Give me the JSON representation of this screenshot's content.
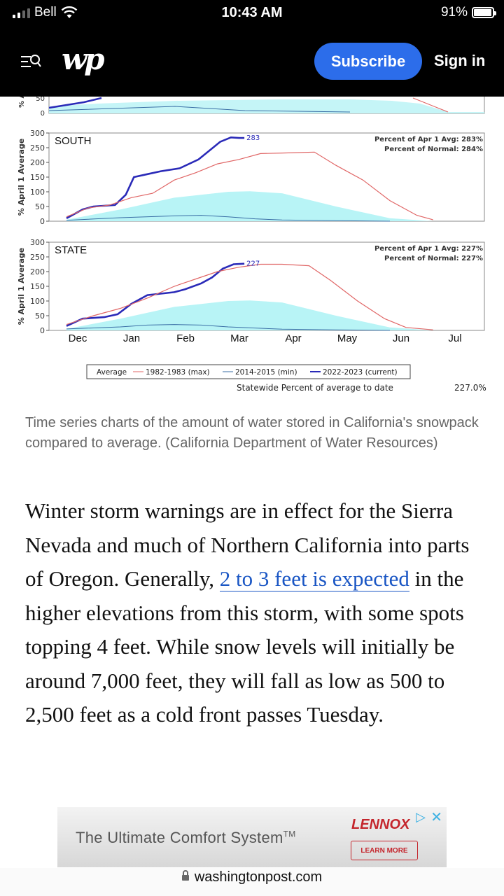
{
  "status_bar": {
    "carrier": "Bell",
    "time": "10:43 AM",
    "battery": "91%",
    "battery_level": 0.91
  },
  "header": {
    "subscribe_label": "Subscribe",
    "signin_label": "Sign in",
    "logo": "wp"
  },
  "chart_data": {
    "type": "line",
    "ylabel": "% April 1 Average",
    "ylim": [
      0,
      300
    ],
    "yticks": [
      0,
      50,
      100,
      150,
      200,
      250,
      300
    ],
    "xlabels": [
      "Dec",
      "Jan",
      "Feb",
      "Mar",
      "Apr",
      "May",
      "Jun",
      "Jul"
    ],
    "panels": [
      {
        "name": "SOUTH",
        "current_label": "283",
        "info_line1": "Percent of Apr 1 Avg: 283%",
        "info_line2": "Percent of Normal: 284%",
        "series": [
          {
            "name": "2022-2023 (current)",
            "x": [
              0,
              0.3,
              0.5,
              0.9,
              1.1,
              1.25,
              1.5,
              1.75,
              2.1,
              2.45,
              2.65,
              2.85,
              3.05,
              3.2,
              3.3
            ],
            "y": [
              10,
              40,
              50,
              55,
              90,
              150,
              160,
              170,
              180,
              210,
              240,
              270,
              285,
              283,
              283
            ]
          },
          {
            "name": "1982-1983 (max)",
            "x": [
              0,
              0.4,
              0.8,
              1.2,
              1.6,
              2.0,
              2.4,
              2.8,
              3.2,
              3.6,
              4.0,
              4.6,
              5.0,
              5.5,
              6.0,
              6.5,
              6.8
            ],
            "y": [
              15,
              45,
              55,
              80,
              95,
              140,
              165,
              195,
              210,
              230,
              232,
              235,
              190,
              140,
              70,
              20,
              5
            ]
          },
          {
            "name": "Average",
            "x": [
              0,
              1,
              2,
              3,
              3.4,
              4,
              5,
              6,
              6.8
            ],
            "y": [
              5,
              40,
              80,
              100,
              102,
              95,
              50,
              10,
              0
            ]
          },
          {
            "name": "2014-2015 (min)",
            "x": [
              0,
              1,
              2,
              2.5,
              3,
              3.5,
              4,
              5,
              6
            ],
            "y": [
              3,
              12,
              18,
              20,
              15,
              8,
              4,
              2,
              0
            ]
          }
        ]
      },
      {
        "name": "STATE",
        "current_label": "227",
        "info_line1": "Percent of Apr 1 Avg: 227%",
        "info_line2": "Percent of Normal: 227%",
        "series": [
          {
            "name": "2022-2023 (current)",
            "x": [
              0,
              0.3,
              0.7,
              0.95,
              1.2,
              1.5,
              1.75,
              2.0,
              2.2,
              2.5,
              2.7,
              2.9,
              3.1,
              3.3
            ],
            "y": [
              15,
              40,
              45,
              55,
              90,
              120,
              125,
              130,
              140,
              160,
              180,
              210,
              225,
              227
            ]
          },
          {
            "name": "1982-1983 (max)",
            "x": [
              0,
              0.5,
              1.0,
              1.5,
              2.0,
              2.4,
              2.8,
              3.2,
              3.6,
              4.0,
              4.5,
              4.9,
              5.4,
              5.9,
              6.3,
              6.8
            ],
            "y": [
              20,
              50,
              75,
              110,
              150,
              175,
              200,
              215,
              225,
              225,
              220,
              170,
              100,
              40,
              10,
              2
            ]
          },
          {
            "name": "Average",
            "x": [
              0,
              1,
              2,
              3,
              3.4,
              4,
              5,
              6,
              6.8
            ],
            "y": [
              5,
              40,
              80,
              100,
              102,
              95,
              50,
              10,
              0
            ]
          },
          {
            "name": "2014-2015 (min)",
            "x": [
              0,
              1,
              1.5,
              2,
              2.5,
              3,
              3.5,
              4,
              5,
              6
            ],
            "y": [
              5,
              12,
              18,
              20,
              18,
              12,
              8,
              4,
              2,
              0
            ]
          }
        ]
      }
    ],
    "legend": [
      "Average",
      "1982-1983 (max)",
      "2014-2015 (min)",
      "2022-2023 (current)"
    ],
    "footer_label": "Statewide Percent of average to date",
    "footer_value": "227.0%",
    "top_panel_partial": {
      "visible_ticks": [
        "0",
        "50"
      ],
      "ylabel_fragment": "% A"
    }
  },
  "caption": "Time series charts of the amount of water stored in California's snowpack compared to average. (California Department of Water Resources)",
  "article": {
    "p1_before_link": "Winter storm warnings are in effect for the Sierra Nevada and much of Northern California into parts of Oregon. Generally, ",
    "p1_link": "2 to 3 feet is expected",
    "p1_after_link": " in the higher elevations from this storm, with some spots topping 4 feet. While snow levels will initially be around 7,000 feet, they will fall as low as 500 to 2,500 feet as a cold front passes Tuesday."
  },
  "ad": {
    "headline": "The Ultimate Comfort System",
    "tm": "TM",
    "brand": "LENNOX",
    "cta": "LEARN MORE"
  },
  "url_bar": {
    "url": "washingtonpost.com"
  },
  "colors": {
    "subscribe_blue": "#2c6dea",
    "link_blue": "#1a56c4",
    "current_line": "#2a2ab8",
    "max_line": "#e06666",
    "avg_fill": "#b8f4f6",
    "min_line": "#3a6ea5"
  }
}
